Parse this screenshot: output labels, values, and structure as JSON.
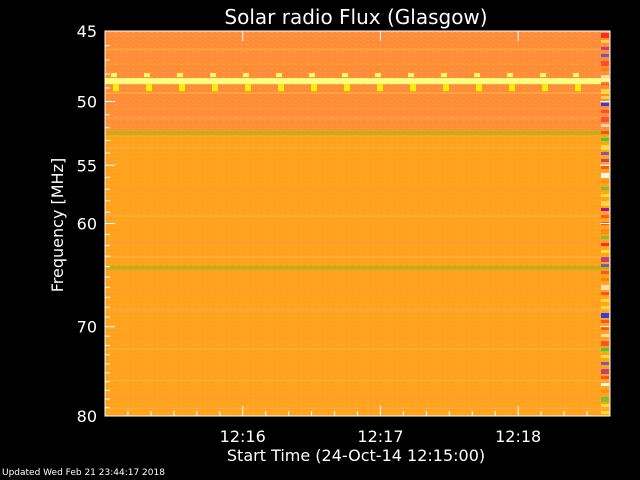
{
  "chart_data": {
    "type": "heatmap",
    "title": "Solar radio Flux (Glasgow)",
    "xlabel": "Start Time (24-Oct-14 12:15:00)",
    "ylabel": "Frequency [MHz]",
    "x_ticks": [
      "12:16",
      "12:17",
      "12:18"
    ],
    "y_ticks": [
      45,
      50,
      55,
      60,
      70,
      80
    ],
    "ylim": [
      45,
      80
    ],
    "yscale": "log",
    "xlim": [
      "12:15:00",
      "12:18:40"
    ],
    "colors": {
      "background": "#000000",
      "base": "#ffa31f",
      "upper_band": "#ff8c3a",
      "bright_line": "#ffff80",
      "green_band": "#b8b01a"
    },
    "features": [
      {
        "type": "bright_line",
        "frequency": 48.5
      },
      {
        "type": "green_band",
        "frequency": 52.4
      },
      {
        "type": "green_band",
        "frequency": 64.1
      }
    ]
  },
  "footer": {
    "updated": "Updated Wed Feb 21 23:44:17 2018"
  }
}
